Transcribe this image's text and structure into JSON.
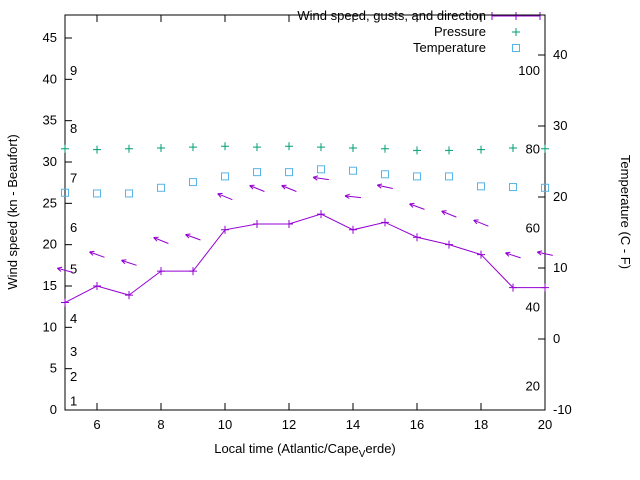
{
  "colors": {
    "wind": "#9400d3",
    "pressure": "#009e73",
    "temperature": "#56b4e9",
    "axis": "#000000",
    "background": "#ffffff"
  },
  "legend": [
    {
      "label": "Wind speed, gusts, and direction",
      "series": "wind"
    },
    {
      "label": "Pressure",
      "series": "pressure"
    },
    {
      "label": "Temperature",
      "series": "temperature"
    }
  ],
  "axes": {
    "x": {
      "label_prefix": "Local time (Atlantic/Cape",
      "label_sub": "V",
      "label_suffix": "erde)",
      "range": [
        5,
        20
      ],
      "ticks": [
        6,
        8,
        10,
        12,
        14,
        16,
        18,
        20
      ]
    },
    "y_left": {
      "label": "Wind speed (kn - Beaufort)",
      "range": [
        0,
        45
      ],
      "ticks": [
        0,
        5,
        10,
        15,
        20,
        25,
        30,
        35,
        40,
        45
      ],
      "beaufort_labels": [
        {
          "text": "1",
          "kn": 1
        },
        {
          "text": "2",
          "kn": 4
        },
        {
          "text": "3",
          "kn": 7
        },
        {
          "text": "4",
          "kn": 11
        },
        {
          "text": "5",
          "kn": 17
        },
        {
          "text": "6",
          "kn": 22
        },
        {
          "text": "7",
          "kn": 28
        },
        {
          "text": "8",
          "kn": 34
        },
        {
          "text": "9",
          "kn": 41
        }
      ]
    },
    "y_right": {
      "label": "Temperature (C - F)",
      "range": [
        -10,
        40
      ],
      "ticks": [
        -10,
        0,
        10,
        20,
        30,
        40
      ],
      "fahrenheit_labels": [
        {
          "text": "20",
          "f": 20
        },
        {
          "text": "40",
          "f": 40
        },
        {
          "text": "60",
          "f": 60
        },
        {
          "text": "80",
          "f": 80
        },
        {
          "text": "100",
          "f": 100
        }
      ]
    }
  },
  "chart_data": {
    "type": "line",
    "title": "",
    "xlabel": "Local time (Atlantic/Cape_Verde)",
    "ylabel_left": "Wind speed (kn - Beaufort)",
    "ylabel_right": "Temperature (C - F)",
    "x": [
      5,
      6,
      7,
      8,
      9,
      10,
      11,
      12,
      13,
      14,
      15,
      16,
      17,
      18,
      19,
      20
    ],
    "series": [
      {
        "name": "wind_speed_kn",
        "axis": "left",
        "style": "line+plus",
        "values": [
          13.0,
          15.0,
          13.9,
          16.8,
          16.8,
          21.8,
          22.5,
          22.5,
          23.7,
          21.8,
          22.7,
          20.9,
          20.0,
          18.8,
          14.8,
          14.8
        ]
      },
      {
        "name": "wind_gusts_kn",
        "axis": "left",
        "style": "direction-arrows",
        "values": [
          16.9,
          18.8,
          17.8,
          20.5,
          20.9,
          25.8,
          26.8,
          26.8,
          28.0,
          25.8,
          27.0,
          24.6,
          23.7,
          22.6,
          18.7,
          18.9
        ],
        "directions_deg": [
          165,
          160,
          162,
          158,
          160,
          158,
          158,
          158,
          172,
          174,
          168,
          160,
          158,
          158,
          162,
          168
        ]
      },
      {
        "name": "pressure",
        "axis": "left-unlabeled",
        "style": "plus",
        "values": [
          31.6,
          31.5,
          31.6,
          31.7,
          31.8,
          31.9,
          31.8,
          31.9,
          31.8,
          31.7,
          31.6,
          31.4,
          31.4,
          31.5,
          31.7,
          31.6
        ]
      },
      {
        "name": "temperature_c",
        "axis": "right",
        "style": "square",
        "values": [
          20.6,
          20.5,
          20.5,
          21.3,
          22.1,
          22.9,
          23.5,
          23.5,
          23.9,
          23.7,
          23.2,
          22.9,
          22.9,
          21.5,
          21.4,
          21.3
        ]
      }
    ],
    "ylim_left": [
      0,
      45
    ],
    "ylim_right": [
      -10,
      40
    ],
    "grid": false,
    "legend_position": "top-right-inside"
  }
}
